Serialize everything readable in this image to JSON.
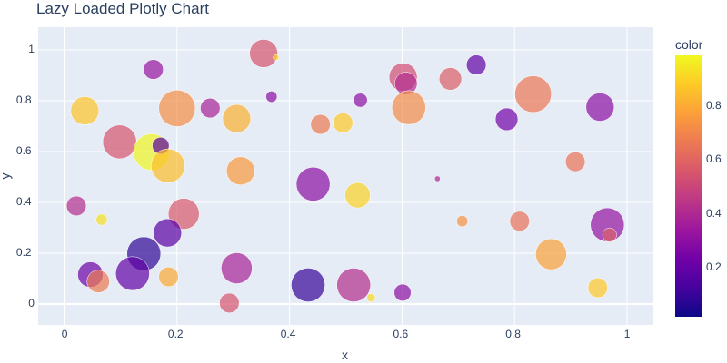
{
  "chart_data": {
    "type": "scatter",
    "title": "Lazy Loaded Plotly Chart",
    "xlabel": "x",
    "ylabel": "y",
    "xlim": [
      -0.045,
      1.045
    ],
    "ylim": [
      -0.085,
      1.085
    ],
    "xticks": [
      "0",
      "0.2",
      "0.4",
      "0.6",
      "0.8",
      "1"
    ],
    "yticks": [
      "0",
      "0.2",
      "0.4",
      "0.6",
      "0.8",
      "1"
    ],
    "grid": true,
    "colorbar": {
      "title": "color",
      "ticks": [
        "0.2",
        "0.4",
        "0.6",
        "0.8"
      ],
      "range": [
        0.02,
        0.99
      ],
      "colorscale": "Plasma"
    },
    "points": [
      {
        "x": 0.354,
        "y": 0.986,
        "color": 0.55,
        "size": 10
      },
      {
        "x": 0.376,
        "y": 0.97,
        "color": 0.9,
        "size": 2
      },
      {
        "x": 0.158,
        "y": 0.923,
        "color": 0.33,
        "size": 7
      },
      {
        "x": 0.602,
        "y": 0.893,
        "color": 0.53,
        "size": 10
      },
      {
        "x": 0.607,
        "y": 0.868,
        "color": 0.42,
        "size": 8
      },
      {
        "x": 0.686,
        "y": 0.886,
        "color": 0.58,
        "size": 8
      },
      {
        "x": 0.732,
        "y": 0.941,
        "color": 0.2,
        "size": 7
      },
      {
        "x": 0.368,
        "y": 0.816,
        "color": 0.3,
        "size": 4
      },
      {
        "x": 0.526,
        "y": 0.802,
        "color": 0.3,
        "size": 5
      },
      {
        "x": 0.036,
        "y": 0.761,
        "color": 0.87,
        "size": 10
      },
      {
        "x": 0.2,
        "y": 0.77,
        "color": 0.73,
        "size": 13
      },
      {
        "x": 0.259,
        "y": 0.771,
        "color": 0.38,
        "size": 7
      },
      {
        "x": 0.306,
        "y": 0.73,
        "color": 0.82,
        "size": 10
      },
      {
        "x": 0.455,
        "y": 0.707,
        "color": 0.67,
        "size": 7
      },
      {
        "x": 0.495,
        "y": 0.713,
        "color": 0.88,
        "size": 7
      },
      {
        "x": 0.612,
        "y": 0.773,
        "color": 0.72,
        "size": 12
      },
      {
        "x": 0.786,
        "y": 0.727,
        "color": 0.24,
        "size": 8
      },
      {
        "x": 0.833,
        "y": 0.826,
        "color": 0.66,
        "size": 13
      },
      {
        "x": 0.952,
        "y": 0.775,
        "color": 0.3,
        "size": 10
      },
      {
        "x": 0.098,
        "y": 0.638,
        "color": 0.55,
        "size": 12
      },
      {
        "x": 0.155,
        "y": 0.598,
        "color": 0.98,
        "size": 13
      },
      {
        "x": 0.171,
        "y": 0.623,
        "color": 0.18,
        "size": 6
      },
      {
        "x": 0.184,
        "y": 0.544,
        "color": 0.85,
        "size": 12
      },
      {
        "x": 0.313,
        "y": 0.524,
        "color": 0.76,
        "size": 10
      },
      {
        "x": 0.442,
        "y": 0.472,
        "color": 0.3,
        "size": 12
      },
      {
        "x": 0.521,
        "y": 0.428,
        "color": 0.9,
        "size": 9
      },
      {
        "x": 0.663,
        "y": 0.493,
        "color": 0.4,
        "size": 2
      },
      {
        "x": 0.908,
        "y": 0.56,
        "color": 0.65,
        "size": 7
      },
      {
        "x": 0.021,
        "y": 0.386,
        "color": 0.42,
        "size": 7
      },
      {
        "x": 0.066,
        "y": 0.332,
        "color": 0.93,
        "size": 4
      },
      {
        "x": 0.212,
        "y": 0.355,
        "color": 0.56,
        "size": 11
      },
      {
        "x": 0.183,
        "y": 0.28,
        "color": 0.18,
        "size": 10
      },
      {
        "x": 0.141,
        "y": 0.198,
        "color": 0.08,
        "size": 12
      },
      {
        "x": 0.046,
        "y": 0.116,
        "color": 0.22,
        "size": 9
      },
      {
        "x": 0.06,
        "y": 0.089,
        "color": 0.67,
        "size": 8
      },
      {
        "x": 0.121,
        "y": 0.12,
        "color": 0.2,
        "size": 12
      },
      {
        "x": 0.185,
        "y": 0.107,
        "color": 0.8,
        "size": 7
      },
      {
        "x": 0.306,
        "y": 0.141,
        "color": 0.38,
        "size": 11
      },
      {
        "x": 0.293,
        "y": 0.004,
        "color": 0.55,
        "size": 7
      },
      {
        "x": 0.433,
        "y": 0.075,
        "color": 0.1,
        "size": 12
      },
      {
        "x": 0.514,
        "y": 0.075,
        "color": 0.42,
        "size": 12
      },
      {
        "x": 0.545,
        "y": 0.025,
        "color": 0.92,
        "size": 3
      },
      {
        "x": 0.601,
        "y": 0.045,
        "color": 0.3,
        "size": 6
      },
      {
        "x": 0.707,
        "y": 0.326,
        "color": 0.74,
        "size": 4
      },
      {
        "x": 0.809,
        "y": 0.326,
        "color": 0.64,
        "size": 7
      },
      {
        "x": 0.865,
        "y": 0.196,
        "color": 0.78,
        "size": 11
      },
      {
        "x": 0.948,
        "y": 0.064,
        "color": 0.88,
        "size": 7
      },
      {
        "x": 0.965,
        "y": 0.312,
        "color": 0.32,
        "size": 12
      },
      {
        "x": 0.969,
        "y": 0.272,
        "color": 0.58,
        "size": 5
      }
    ]
  },
  "plot_colors": {
    "plot_bg": "#e5ecf6",
    "grid": "#ffffff",
    "text": "#2a3f5f"
  }
}
